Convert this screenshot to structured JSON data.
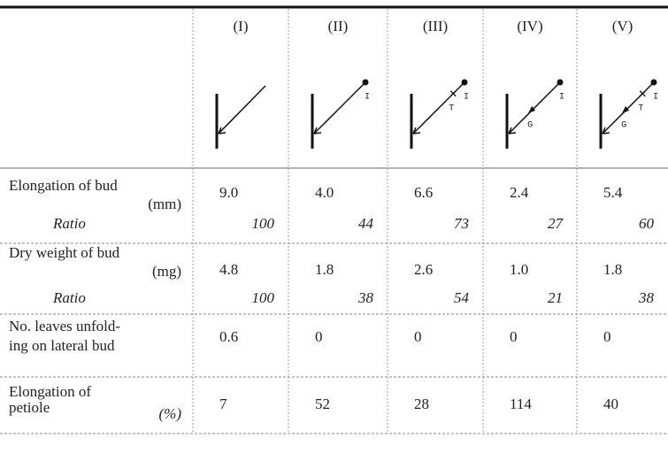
{
  "header": {
    "columns": [
      "(I)",
      "(II)",
      "(III)",
      "(IV)",
      "(V)"
    ]
  },
  "diagram_labels": [
    [],
    [
      "I"
    ],
    [
      "T",
      "I"
    ],
    [
      "G",
      "I"
    ],
    [
      "G",
      "T",
      "I"
    ]
  ],
  "rows": [
    {
      "label": [
        "Elongation of bud",
        "(mm)"
      ],
      "values": [
        "9.0",
        "4.0",
        "6.6",
        "2.4",
        "5.4"
      ],
      "ratio_label": "Ratio",
      "ratios": [
        "100",
        "44",
        "73",
        "27",
        "60"
      ]
    },
    {
      "label": [
        "Dry weight of bud",
        "(mg)"
      ],
      "values": [
        "4.8",
        "1.8",
        "2.6",
        "1.0",
        "1.8"
      ],
      "ratio_label": "Ratio",
      "ratios": [
        "100",
        "38",
        "54",
        "21",
        "38"
      ]
    },
    {
      "label": [
        "No. leaves unfold-",
        "ing on lateral bud"
      ],
      "values": [
        "0.6",
        "0",
        "0",
        "0",
        "0"
      ]
    },
    {
      "label": [
        "Elongation of",
        "petiole",
        "(%)"
      ],
      "values": [
        "7",
        "52",
        "28",
        "114",
        "40"
      ]
    }
  ]
}
